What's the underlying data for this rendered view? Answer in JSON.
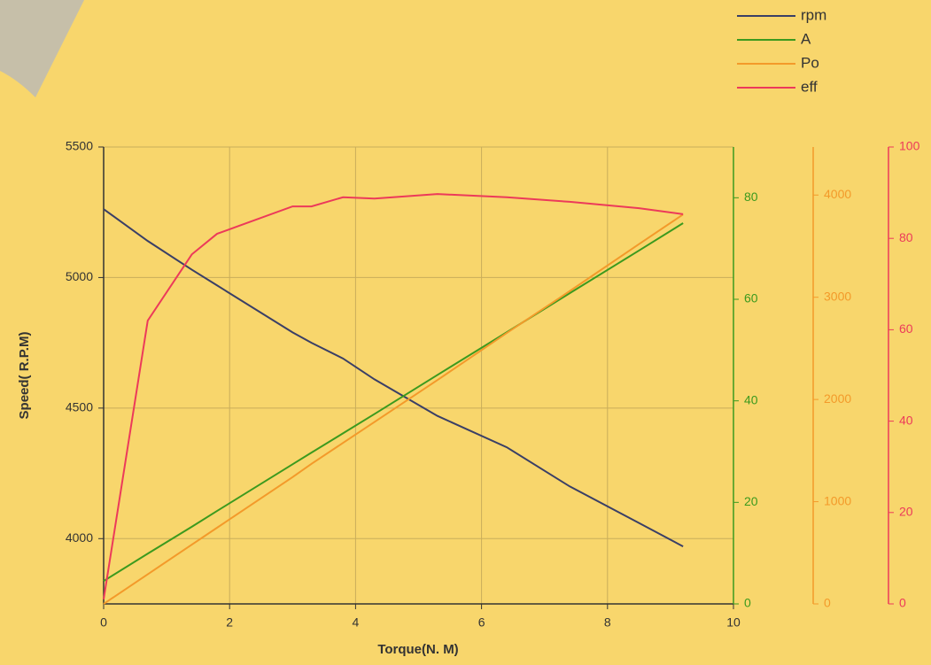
{
  "chart_data": {
    "type": "line",
    "xlabel": "Torque(N. M)",
    "ylabel": "Speed( R.P.M)",
    "x": [
      0,
      0.7,
      1.4,
      1.8,
      3,
      3.3,
      3.8,
      4.3,
      5.3,
      6.4,
      7.4,
      8.5,
      9.2
    ],
    "xlim": [
      0,
      10
    ],
    "xticks": [
      0,
      2,
      4,
      6,
      8,
      10
    ],
    "ylim": [
      3750,
      5500
    ],
    "yticks": [
      4000,
      4500,
      5000,
      5500
    ],
    "y2lim": [
      0,
      90
    ],
    "y2ticks": [
      0,
      20,
      40,
      60,
      80
    ],
    "y3lim": [
      0,
      4470
    ],
    "y3ticks": [
      0,
      1000,
      2000,
      3000,
      4000
    ],
    "y4lim": [
      0,
      100
    ],
    "y4ticks": [
      0,
      20,
      40,
      60,
      80,
      100
    ],
    "grid": true,
    "legend": "top-right",
    "series": [
      {
        "name": "rpm",
        "color": "#3a3f66",
        "values": [
          5262,
          5140,
          5030,
          4970,
          4790,
          4750,
          4690,
          4610,
          4470,
          4350,
          4200,
          4060,
          3970
        ]
      },
      {
        "name": "A",
        "color": "#3c9a1e",
        "axis": "y2",
        "values": [
          4.5,
          9.9,
          15.2,
          18.3,
          27.5,
          29.8,
          33.6,
          37.4,
          45.1,
          53.5,
          61.2,
          69.6,
          75
        ]
      },
      {
        "name": "Po",
        "color": "#f39a2a",
        "axis": "y3",
        "values": [
          0,
          290,
          580,
          745,
          1240,
          1370,
          1575,
          1780,
          2190,
          2650,
          3060,
          3520,
          3810
        ]
      },
      {
        "name": "eff",
        "color": "#ec3a5a",
        "axis": "y4",
        "values": [
          1,
          62,
          76.5,
          81,
          87,
          87,
          89,
          88.7,
          89.7,
          89,
          88,
          86.6,
          85.3
        ]
      }
    ]
  }
}
